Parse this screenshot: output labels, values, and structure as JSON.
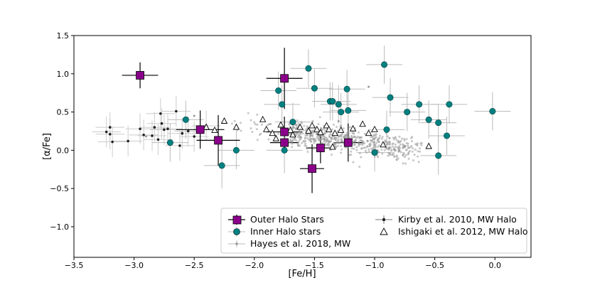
{
  "chart_data": {
    "type": "scatter",
    "title": "",
    "xlabel": "[Fe/H]",
    "ylabel": "[α/Fe]",
    "xlim": [
      -3.5,
      0.3
    ],
    "ylim": [
      -1.4,
      1.5
    ],
    "xticks": [
      -3.5,
      -3.0,
      -2.5,
      -2.0,
      -1.5,
      -1.0,
      -0.5,
      0.0
    ],
    "xtick_labels": [
      "−3.5",
      "−3.0",
      "−2.5",
      "−2.0",
      "−1.5",
      "−1.0",
      "−0.5",
      "0.0"
    ],
    "yticks": [
      -1.0,
      -0.5,
      0.0,
      0.5,
      1.0,
      1.5
    ],
    "ytick_labels": [
      "−1.0",
      "−0.5",
      "0.0",
      "0.5",
      "1.0",
      "1.5"
    ],
    "legend_position": "lower-right",
    "legend": [
      {
        "label": "Outer Halo Stars",
        "marker": "square",
        "color": "#8b008b"
      },
      {
        "label": "Inner Halo stars",
        "marker": "circle",
        "color": "#008080"
      },
      {
        "label": "Hayes et al. 2018, MW",
        "marker": "small-dot",
        "color": "#999999"
      },
      {
        "label": "Kirby et al. 2010, MW Halo",
        "marker": "dot",
        "color": "#222222"
      },
      {
        "label": "Ishigaki et al. 2012, MW Halo",
        "marker": "triangle",
        "color": "#ffffff"
      }
    ],
    "colors": {
      "outer": "#8b008b",
      "inner": "#008080",
      "hayes": "#999999",
      "kirby": "#222222",
      "ishigaki": "#ffffff",
      "errorbar": "#bbbbbb"
    },
    "series": [
      {
        "name": "Outer Halo Stars",
        "points": [
          {
            "x": -2.95,
            "y": 0.98,
            "xerr": 0.15,
            "yerr": 0.17
          },
          {
            "x": -1.75,
            "y": 0.94,
            "xerr": 0.15,
            "yerr": 0.4
          },
          {
            "x": -2.45,
            "y": 0.27,
            "xerr": 0.2,
            "yerr": 0.25
          },
          {
            "x": -2.3,
            "y": 0.13,
            "xerr": 0.18,
            "yerr": 0.33
          },
          {
            "x": -1.75,
            "y": 0.24,
            "xerr": 0.15,
            "yerr": 0.2
          },
          {
            "x": -1.75,
            "y": 0.1,
            "xerr": 0.12,
            "yerr": 0.14
          },
          {
            "x": -1.45,
            "y": 0.03,
            "xerr": 0.12,
            "yerr": 0.2
          },
          {
            "x": -1.52,
            "y": -0.24,
            "xerr": 0.1,
            "yerr": 0.32
          },
          {
            "x": -1.22,
            "y": 0.1,
            "xerr": 0.12,
            "yerr": 0.25
          }
        ]
      },
      {
        "name": "Inner Halo stars",
        "points": [
          {
            "x": -2.57,
            "y": 0.4,
            "xerr": 0.15,
            "yerr": 0.25
          },
          {
            "x": -2.7,
            "y": 0.1,
            "xerr": 0.15,
            "yerr": 0.25
          },
          {
            "x": -2.27,
            "y": -0.2,
            "xerr": 0.15,
            "yerr": 0.3
          },
          {
            "x": -2.15,
            "y": 0.0,
            "xerr": 0.15,
            "yerr": 0.25
          },
          {
            "x": -1.8,
            "y": 0.78,
            "xerr": 0.15,
            "yerr": 0.25
          },
          {
            "x": -1.77,
            "y": 0.6,
            "xerr": 0.15,
            "yerr": 0.25
          },
          {
            "x": -1.75,
            "y": 0.0,
            "xerr": 0.15,
            "yerr": 0.3
          },
          {
            "x": -1.68,
            "y": 0.37,
            "xerr": 0.15,
            "yerr": 0.25
          },
          {
            "x": -1.55,
            "y": 1.07,
            "xerr": 0.15,
            "yerr": 0.25
          },
          {
            "x": -1.5,
            "y": 0.81,
            "xerr": 0.15,
            "yerr": 0.25
          },
          {
            "x": -1.37,
            "y": 0.64,
            "xerr": 0.15,
            "yerr": 0.25
          },
          {
            "x": -1.35,
            "y": 0.64,
            "xerr": 0.15,
            "yerr": 0.25
          },
          {
            "x": -1.3,
            "y": 0.6,
            "xerr": 0.15,
            "yerr": 0.25
          },
          {
            "x": -1.28,
            "y": 0.5,
            "xerr": 0.15,
            "yerr": 0.25
          },
          {
            "x": -1.23,
            "y": 0.8,
            "xerr": 0.15,
            "yerr": 0.25
          },
          {
            "x": -1.22,
            "y": 0.52,
            "xerr": 0.15,
            "yerr": 0.25
          },
          {
            "x": -1.0,
            "y": -0.03,
            "xerr": 0.15,
            "yerr": 0.25
          },
          {
            "x": -0.92,
            "y": 1.12,
            "xerr": 0.15,
            "yerr": 0.25
          },
          {
            "x": -0.9,
            "y": 0.27,
            "xerr": 0.15,
            "yerr": 0.25
          },
          {
            "x": -0.87,
            "y": 0.69,
            "xerr": 0.15,
            "yerr": 0.25
          },
          {
            "x": -0.73,
            "y": 0.5,
            "xerr": 0.15,
            "yerr": 0.25
          },
          {
            "x": -0.63,
            "y": 0.6,
            "xerr": 0.15,
            "yerr": 0.25
          },
          {
            "x": -0.55,
            "y": 0.4,
            "xerr": 0.15,
            "yerr": 0.25
          },
          {
            "x": -0.47,
            "y": 0.36,
            "xerr": 0.15,
            "yerr": 0.25
          },
          {
            "x": -0.47,
            "y": -0.07,
            "xerr": 0.15,
            "yerr": 0.25
          },
          {
            "x": -0.38,
            "y": 0.6,
            "xerr": 0.15,
            "yerr": 0.25
          },
          {
            "x": -0.4,
            "y": 0.19,
            "xerr": 0.15,
            "yerr": 0.25
          },
          {
            "x": -0.02,
            "y": 0.51,
            "xerr": 0.15,
            "yerr": 0.25
          }
        ]
      },
      {
        "name": "Kirby et al. 2010, MW Halo",
        "points": [
          {
            "x": -3.23,
            "y": 0.24
          },
          {
            "x": -3.2,
            "y": 0.3
          },
          {
            "x": -3.2,
            "y": 0.21
          },
          {
            "x": -3.18,
            "y": 0.11
          },
          {
            "x": -3.05,
            "y": 0.12
          },
          {
            "x": -2.95,
            "y": 0.28
          },
          {
            "x": -2.92,
            "y": 0.2
          },
          {
            "x": -2.85,
            "y": 0.19
          },
          {
            "x": -2.83,
            "y": 0.3
          },
          {
            "x": -2.8,
            "y": 0.14
          },
          {
            "x": -2.78,
            "y": 0.48
          },
          {
            "x": -2.77,
            "y": 0.35
          },
          {
            "x": -2.75,
            "y": 0.27
          },
          {
            "x": -2.72,
            "y": 0.28
          },
          {
            "x": -2.65,
            "y": 0.51
          },
          {
            "x": -2.6,
            "y": 0.22
          },
          {
            "x": -2.55,
            "y": 0.25
          },
          {
            "x": -2.5,
            "y": 0.18
          },
          {
            "x": -2.4,
            "y": 0.32
          },
          {
            "x": -2.62,
            "y": 0.06
          }
        ]
      },
      {
        "name": "Ishigaki et al. 2012, MW Halo",
        "points": [
          {
            "x": -2.4,
            "y": 0.3
          },
          {
            "x": -2.33,
            "y": 0.26
          },
          {
            "x": -2.25,
            "y": 0.38
          },
          {
            "x": -2.15,
            "y": 0.3
          },
          {
            "x": -1.93,
            "y": 0.4
          },
          {
            "x": -1.9,
            "y": 0.27
          },
          {
            "x": -1.85,
            "y": 0.22
          },
          {
            "x": -1.82,
            "y": 0.15
          },
          {
            "x": -1.78,
            "y": 0.33
          },
          {
            "x": -1.7,
            "y": 0.26
          },
          {
            "x": -1.68,
            "y": 0.2
          },
          {
            "x": -1.62,
            "y": 0.3
          },
          {
            "x": -1.55,
            "y": 0.25
          },
          {
            "x": -1.52,
            "y": 0.32
          },
          {
            "x": -1.48,
            "y": 0.27
          },
          {
            "x": -1.45,
            "y": 0.23
          },
          {
            "x": -1.4,
            "y": 0.32
          },
          {
            "x": -1.38,
            "y": 0.27
          },
          {
            "x": -1.33,
            "y": 0.22
          },
          {
            "x": -1.28,
            "y": 0.26
          },
          {
            "x": -1.18,
            "y": 0.28
          },
          {
            "x": -1.1,
            "y": 0.34
          },
          {
            "x": -1.05,
            "y": 0.22
          },
          {
            "x": -1.0,
            "y": 0.27
          },
          {
            "x": -0.93,
            "y": 0.07
          },
          {
            "x": -0.55,
            "y": 0.05
          },
          {
            "x": -1.35,
            "y": 0.04
          }
        ]
      }
    ],
    "hayes_cloud": {
      "x_range": [
        -2.2,
        -0.6
      ],
      "y_trend_at_x_min": 0.32,
      "y_trend_at_x_max": 0.0,
      "scatter": 0.1,
      "n_points": 650
    }
  }
}
